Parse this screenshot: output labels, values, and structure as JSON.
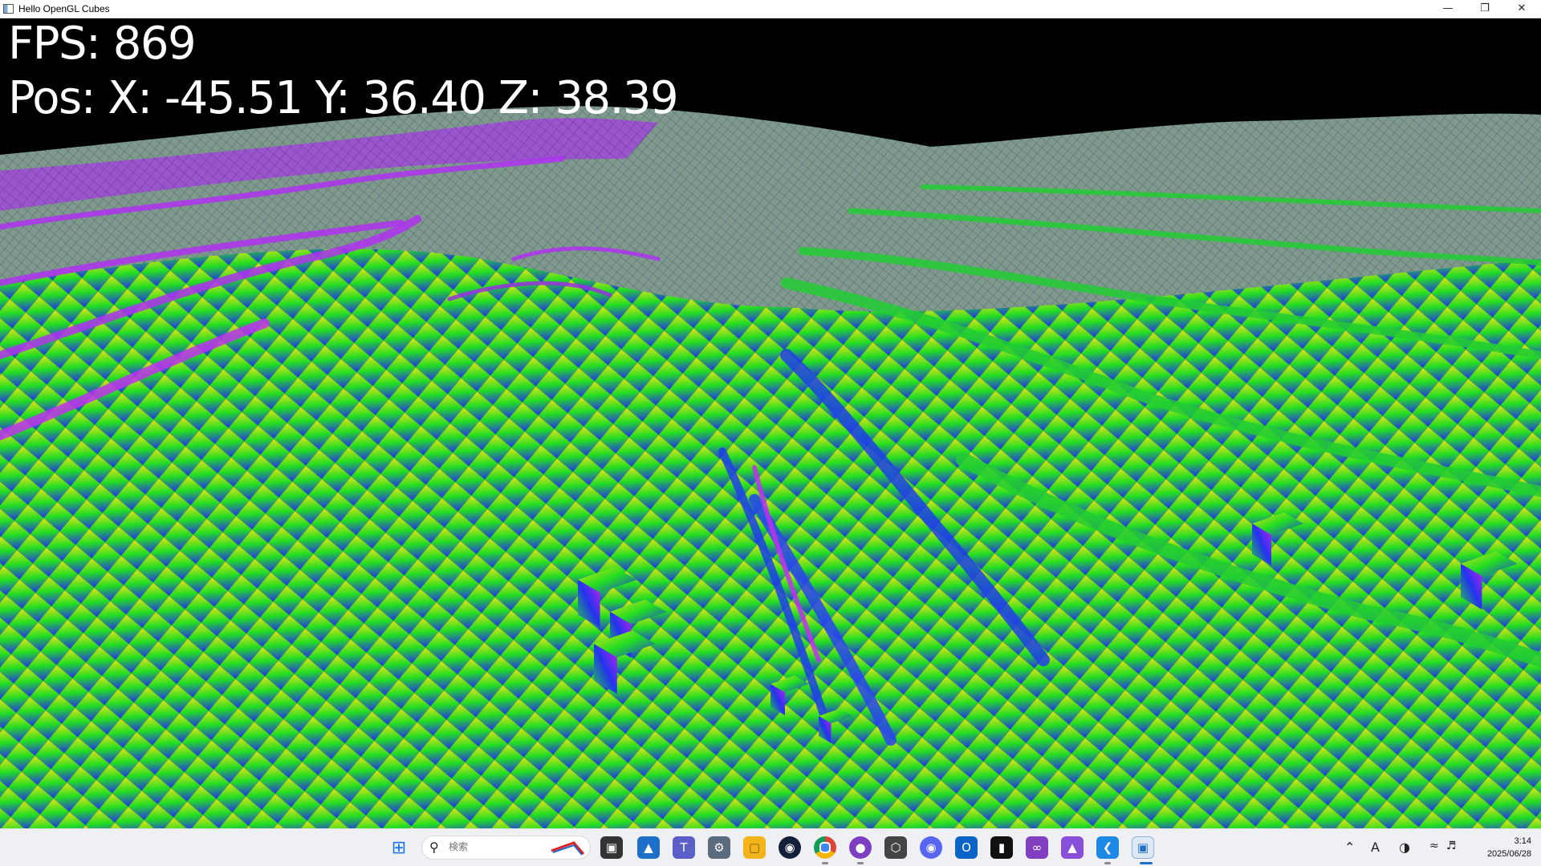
{
  "window": {
    "title": "Hello OpenGL Cubes"
  },
  "hud": {
    "fps_text": "FPS: 869",
    "pos_text": "Pos: X: -45.51 Y: 36.40 Z: 38.39"
  },
  "colors": {
    "sky": "#000000",
    "cube_yellow": "#e6e614",
    "cube_green": "#22dd22",
    "cube_blue": "#2233ee",
    "cube_magenta": "#cc22ee",
    "cube_gray": "#8a8f92",
    "cube_red": "#cc2222"
  },
  "taskbar": {
    "search_placeholder": "検索",
    "icons": [
      "windows-start-icon",
      "search-icon",
      "task-view-icon",
      "photos-icon",
      "teams-icon",
      "settings-icon",
      "file-explorer-icon",
      "steam-icon",
      "chrome-icon",
      "github-desktop-icon",
      "unity-icon",
      "discord-icon",
      "outlook-icon",
      "terminal-icon",
      "visual-studio-icon",
      "affinity-icon",
      "vscode-icon",
      "opengl-app-icon"
    ]
  },
  "tray": {
    "time": "3:14",
    "date": "2025/06/28",
    "ime": "A"
  }
}
